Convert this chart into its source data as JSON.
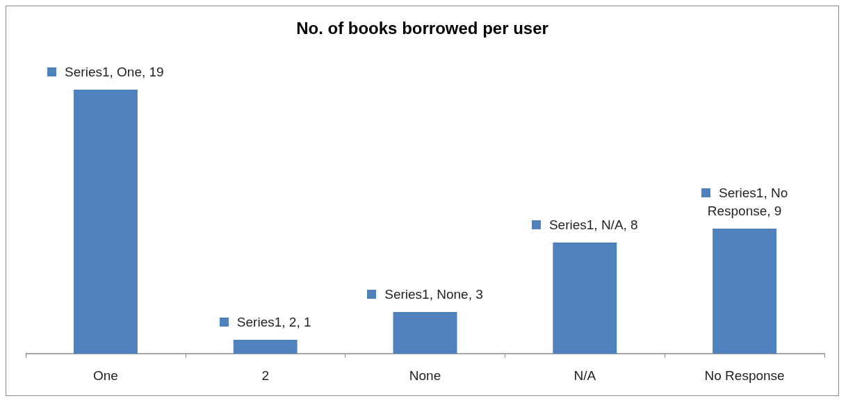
{
  "chart_data": {
    "type": "bar",
    "title": "No. of books borrowed per user",
    "categories": [
      "One",
      "2",
      "None",
      "N/A",
      "No Response"
    ],
    "series": [
      {
        "color": "#4f81bd",
        "values": [
          19,
          1,
          3,
          8,
          9
        ],
        "value_labels": [
          "Series1, One, 19",
          "Series1, 2, 1",
          "Series1, None, 3",
          "Series1, N/A, 8",
          "Series1, No Response, 9"
        ]
      }
    ],
    "grid": false,
    "tick_labels": "x"
  }
}
